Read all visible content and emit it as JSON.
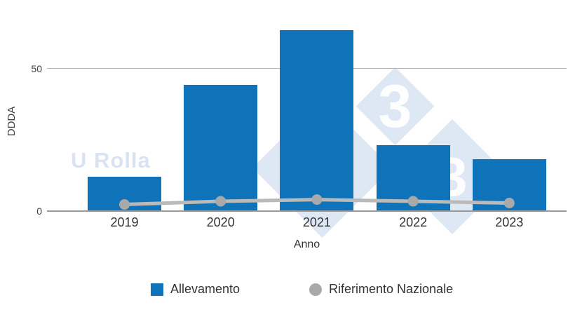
{
  "watermark": {
    "text": "U Rolla",
    "logo_digit": "3"
  },
  "chart_data": {
    "type": "bar",
    "categories": [
      "2019",
      "2020",
      "2021",
      "2022",
      "2023"
    ],
    "series": [
      {
        "name": "Allevamento",
        "type": "bar",
        "color": "#0E73B8",
        "values": [
          12,
          44,
          63,
          23,
          18
        ]
      },
      {
        "name": "Riferimento Nazionale",
        "type": "line",
        "color": "#BABABA",
        "marker_color": "#A9A9A9",
        "values": [
          2.2,
          3.3,
          3.9,
          3.3,
          2.7
        ]
      }
    ],
    "xlabel": "Anno",
    "ylabel": "DDDA",
    "yticks": [
      0,
      50
    ],
    "ytick_labels": [
      "0",
      "50"
    ],
    "ylim": [
      0,
      65
    ],
    "grid": "horizontal",
    "legend_position": "bottom"
  },
  "colors": {
    "axis_line": "#9B9B9B",
    "grid_line": "#B4B4B4",
    "tick_text": "#404040",
    "label_text": "#333333",
    "watermark_fill": "rgba(125,162,215,0.25)",
    "watermark_text": "rgba(150,175,215,0.35)"
  }
}
